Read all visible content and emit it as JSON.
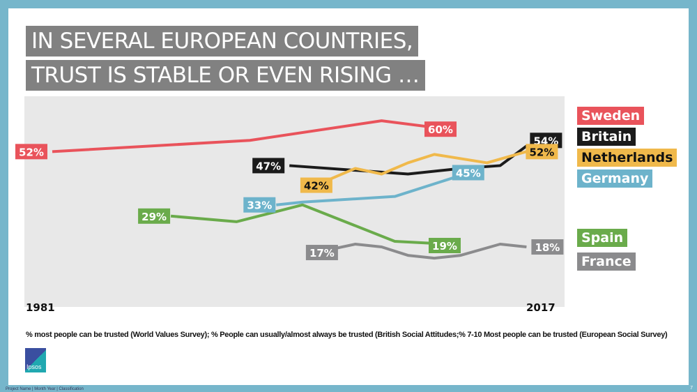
{
  "title_lines": [
    "IN SEVERAL EUROPEAN COUNTRIES,",
    "TRUST IS STABLE OR EVEN RISING …"
  ],
  "chart_data": {
    "type": "line",
    "xlabel": "",
    "ylabel": "",
    "x_tick_labels": [
      "1981",
      "2017"
    ],
    "xlim": [
      1981,
      2017
    ],
    "grid": false,
    "legend_placement": "right",
    "series": [
      {
        "name": "Sweden",
        "color": "#e9535b",
        "x": [
          1981,
          1996,
          2006,
          2011
        ],
        "values": [
          52,
          56,
          63,
          60
        ],
        "start_label": "52%",
        "end_label": "60%"
      },
      {
        "name": "Britain",
        "color": "#1b1b1b",
        "x": [
          1999,
          2008,
          2012,
          2015,
          2017
        ],
        "values": [
          47,
          44,
          46,
          47,
          54
        ],
        "start_label": "47%",
        "end_label": "54%"
      },
      {
        "name": "Netherlands",
        "color": "#f0b94b",
        "x": [
          2002,
          2004,
          2006,
          2008,
          2010,
          2014,
          2017
        ],
        "values": [
          42,
          46,
          44,
          48,
          51,
          48,
          52
        ],
        "start_label": "42%",
        "end_label": "52%"
      },
      {
        "name": "Germany",
        "color": "#6db3cb",
        "x": [
          1998,
          2000,
          2007,
          2013
        ],
        "values": [
          33,
          34,
          36,
          45
        ],
        "start_label": "33%",
        "end_label": "45%"
      },
      {
        "name": "Spain",
        "color": "#6aab4b",
        "x": [
          1990,
          1995,
          2000,
          2007,
          2011
        ],
        "values": [
          29,
          27,
          33,
          20,
          19
        ],
        "start_label": "29%",
        "end_label": "19%"
      },
      {
        "name": "France",
        "color": "#8b8b8d",
        "x": [
          2002,
          2004,
          2006,
          2008,
          2010,
          2012,
          2015,
          2017
        ],
        "values": [
          17,
          19,
          18,
          15,
          14,
          15,
          19,
          18
        ],
        "start_label": "17%",
        "end_label": "18%"
      }
    ]
  },
  "source_note": "% most people can be trusted (World Values Survey); % People can usually/almost always be trusted (British Social Attitudes;% 7-10 Most people can be trusted (European Social Survey)",
  "logo_text": "Ipsos",
  "footer": "Project Name  |  Month Year  |  Classification",
  "page_number": "7"
}
